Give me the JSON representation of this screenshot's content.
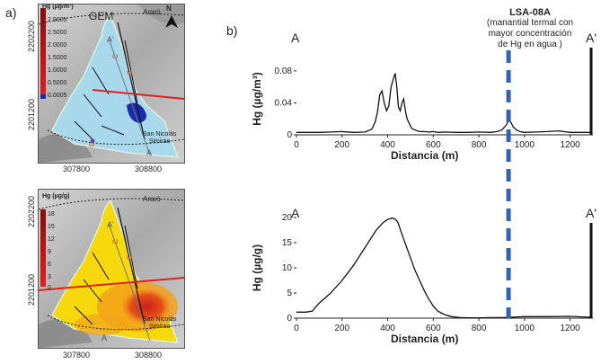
{
  "panels": {
    "a": "a)",
    "b": "b)"
  },
  "map_top": {
    "title": "GEM",
    "place_top": "Araró",
    "north": "N",
    "place_bottom": "San Nicolás\nSimirao",
    "section_end": "A'",
    "section_start": "A",
    "legend_title": "Hg (µg/m³)",
    "legend_labels": [
      "2.9005",
      "2.5000",
      "2.0000",
      "1.5000",
      "1.0000",
      "0.5000",
      "0.0005"
    ],
    "y_ticks": [
      "2202200",
      "2201200"
    ],
    "x_ticks": [
      "307800",
      "308800"
    ],
    "colors": {
      "fill": "#a8d8ec",
      "terrain": "#b9b9b9",
      "fault": "#111111",
      "red": "#e02020",
      "blue": "#1a2bb0"
    }
  },
  "map_bottom": {
    "place_top": "Araró",
    "place_bottom": "San Nicolás\nSimirao",
    "section_end": "A'",
    "section_start": "A",
    "legend_title": "Hg (µg/g)",
    "legend_labels": [
      "18",
      "15",
      "12",
      "9",
      "6",
      "3",
      "0"
    ],
    "y_ticks": [
      "2202200",
      "2201200"
    ],
    "x_ticks": [
      "307800",
      "308800"
    ],
    "colors": {
      "yellow": "#f6d80c",
      "orange": "#f2a21a",
      "red": "#d6301a"
    }
  },
  "annotation": {
    "title": "LSA-08A",
    "lines": [
      "(manantial termal con",
      "mayor concentración",
      "de Hg en agua )"
    ],
    "x_position": 930,
    "color": "#2f64b4"
  },
  "chart_data": [
    {
      "type": "line",
      "title": "",
      "xlabel": "Distancia (m)",
      "ylabel": "Hg (µg/m³)",
      "xlim": [
        0,
        1300
      ],
      "ylim": [
        0,
        0.09
      ],
      "x_ticks": [
        "0",
        "200",
        "400",
        "600",
        "800",
        "1000",
        "1200"
      ],
      "x_tick_values": [
        0,
        200,
        400,
        600,
        800,
        1000,
        1200
      ],
      "y_ticks": [
        "0",
        "0.04",
        "0.08"
      ],
      "y_tick_values": [
        0,
        0.04,
        0.08
      ],
      "end_labels": [
        "A",
        "A'"
      ],
      "x": [
        0,
        50,
        100,
        150,
        200,
        250,
        300,
        330,
        345,
        355,
        365,
        375,
        385,
        395,
        405,
        415,
        425,
        433,
        440,
        447,
        455,
        463,
        470,
        478,
        485,
        495,
        505,
        520,
        540,
        560,
        580,
        600,
        620,
        650,
        700,
        750,
        800,
        850,
        880,
        900,
        920,
        930,
        940,
        950,
        965,
        980,
        1000,
        1050,
        1100,
        1150,
        1200,
        1250,
        1290
      ],
      "y": [
        0.003,
        0.003,
        0.003,
        0.0035,
        0.004,
        0.003,
        0.0035,
        0.007,
        0.016,
        0.028,
        0.05,
        0.055,
        0.04,
        0.03,
        0.036,
        0.06,
        0.07,
        0.077,
        0.06,
        0.035,
        0.03,
        0.04,
        0.045,
        0.03,
        0.02,
        0.014,
        0.008,
        0.006,
        0.004,
        0.004,
        0.0035,
        0.004,
        0.003,
        0.0035,
        0.003,
        0.003,
        0.0035,
        0.003,
        0.004,
        0.006,
        0.012,
        0.018,
        0.016,
        0.01,
        0.006,
        0.004,
        0.003,
        0.0035,
        0.004,
        0.005,
        0.003,
        0.003,
        0.003
      ]
    },
    {
      "type": "line",
      "title": "",
      "xlabel": "Distancia (m)",
      "ylabel": "Hg (µg/g)",
      "xlim": [
        0,
        1300
      ],
      "ylim": [
        0,
        20
      ],
      "x_ticks": [
        "0",
        "200",
        "400",
        "600",
        "800",
        "1000",
        "1200"
      ],
      "x_tick_values": [
        0,
        200,
        400,
        600,
        800,
        1000,
        1200
      ],
      "y_ticks": [
        "0",
        "5",
        "10",
        "15",
        "20"
      ],
      "y_tick_values": [
        0,
        5,
        10,
        15,
        20
      ],
      "end_labels": [
        "A",
        "A'"
      ],
      "x": [
        0,
        40,
        70,
        80,
        100,
        150,
        200,
        250,
        300,
        350,
        380,
        400,
        420,
        435,
        445,
        460,
        480,
        500,
        520,
        540,
        560,
        580,
        600,
        620,
        650,
        680,
        700,
        720,
        760,
        800,
        850,
        900,
        950,
        1000,
        1100,
        1200,
        1250,
        1290
      ],
      "y": [
        1.2,
        1.2,
        1.4,
        2.0,
        3.0,
        5.0,
        7.5,
        10.5,
        14.0,
        17.5,
        19.0,
        19.6,
        19.9,
        19.6,
        19.0,
        17.0,
        14.5,
        12.0,
        9.5,
        7.5,
        5.5,
        3.8,
        2.4,
        1.4,
        0.7,
        0.3,
        0.2,
        0.1,
        0.05,
        0.05,
        0.1,
        0.1,
        0.2,
        0.3,
        0.3,
        0.35,
        0.25,
        0.2
      ]
    }
  ]
}
